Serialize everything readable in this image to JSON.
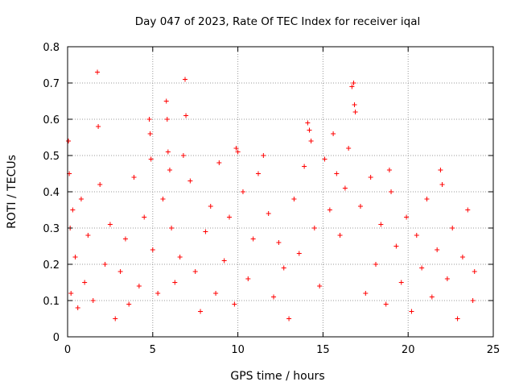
{
  "chart_data": {
    "type": "scatter",
    "title": "Day 047 of 2023, Rate Of TEC Index for receiver iqal",
    "xlabel": "GPS time / hours",
    "ylabel": "ROTI / TECUs",
    "xlim": [
      0,
      25
    ],
    "ylim": [
      0,
      0.8
    ],
    "x_ticks": [
      0,
      5,
      10,
      15,
      20,
      25
    ],
    "x_tick_labels": [
      "0",
      "5",
      "10",
      "15",
      "20",
      "25"
    ],
    "y_ticks": [
      0,
      0.1,
      0.2,
      0.3,
      0.4,
      0.5,
      0.6,
      0.7,
      0.8
    ],
    "y_tick_labels": [
      "0",
      "0.1",
      "0.2",
      "0.3",
      "0.4",
      "0.5",
      "0.6",
      "0.7",
      "0.8"
    ],
    "grid": true,
    "marker": "plus",
    "color": "#ff0000",
    "series": [
      {
        "x": [
          0.05,
          0.1,
          0.15,
          0.2,
          0.3,
          0.45,
          0.6,
          0.8,
          1.0,
          1.2,
          1.5,
          1.75,
          1.8,
          1.9,
          2.2,
          2.5,
          2.8,
          3.1,
          3.4,
          3.6,
          3.9,
          4.2,
          4.5,
          4.8,
          4.85,
          4.9,
          5.0,
          5.3,
          5.6,
          5.8,
          5.85,
          5.9,
          6.0,
          6.1,
          6.3,
          6.6,
          6.8,
          6.9,
          6.95,
          7.2,
          7.5,
          7.8,
          8.1,
          8.4,
          8.7,
          8.9,
          9.2,
          9.5,
          9.8,
          9.9,
          10.0,
          10.3,
          10.6,
          10.9,
          11.2,
          11.5,
          11.8,
          12.1,
          12.4,
          12.7,
          13.0,
          13.3,
          13.6,
          13.9,
          14.1,
          14.2,
          14.3,
          14.5,
          14.8,
          15.1,
          15.4,
          15.6,
          15.8,
          16.0,
          16.3,
          16.5,
          16.7,
          16.8,
          16.85,
          16.9,
          17.2,
          17.5,
          17.8,
          18.1,
          18.4,
          18.7,
          18.9,
          19.0,
          19.3,
          19.6,
          19.9,
          20.2,
          20.5,
          20.8,
          21.1,
          21.4,
          21.7,
          21.9,
          22.0,
          22.3,
          22.6,
          22.9,
          23.2,
          23.5,
          23.8,
          23.9
        ],
        "y": [
          0.54,
          0.45,
          0.3,
          0.12,
          0.35,
          0.22,
          0.08,
          0.38,
          0.15,
          0.28,
          0.1,
          0.73,
          0.58,
          0.42,
          0.2,
          0.31,
          0.05,
          0.18,
          0.27,
          0.09,
          0.44,
          0.14,
          0.33,
          0.6,
          0.56,
          0.49,
          0.24,
          0.12,
          0.38,
          0.65,
          0.6,
          0.51,
          0.46,
          0.3,
          0.15,
          0.22,
          0.5,
          0.71,
          0.61,
          0.43,
          0.18,
          0.07,
          0.29,
          0.36,
          0.12,
          0.48,
          0.21,
          0.33,
          0.09,
          0.52,
          0.51,
          0.4,
          0.16,
          0.27,
          0.45,
          0.5,
          0.34,
          0.11,
          0.26,
          0.19,
          0.05,
          0.38,
          0.23,
          0.47,
          0.59,
          0.57,
          0.54,
          0.3,
          0.14,
          0.49,
          0.35,
          0.56,
          0.45,
          0.28,
          0.41,
          0.52,
          0.69,
          0.7,
          0.64,
          0.62,
          0.36,
          0.12,
          0.44,
          0.2,
          0.31,
          0.09,
          0.46,
          0.4,
          0.25,
          0.15,
          0.33,
          0.07,
          0.28,
          0.19,
          0.38,
          0.11,
          0.24,
          0.46,
          0.42,
          0.16,
          0.3,
          0.05,
          0.22,
          0.35,
          0.1,
          0.18
        ]
      }
    ]
  }
}
